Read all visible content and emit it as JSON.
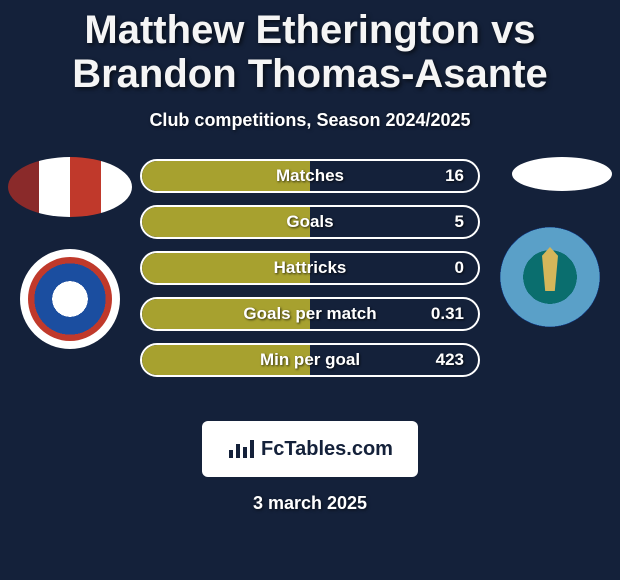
{
  "title": "Matthew Etherington vs Brandon Thomas-Asante",
  "title_fontsize": 40,
  "title_color": "#f5f5f5",
  "subtitle": "Club competitions, Season 2024/2025",
  "subtitle_fontsize": 18,
  "subtitle_color": "#ffffff",
  "background_color": "#14213a",
  "bars": {
    "track_border_color": "#ffffff",
    "fill_color": "#a7a12f",
    "fill_fraction": 0.5,
    "label_fontsize": 17,
    "value_fontsize": 17,
    "items": [
      {
        "label": "Matches",
        "value": "16"
      },
      {
        "label": "Goals",
        "value": "5"
      },
      {
        "label": "Hattricks",
        "value": "0"
      },
      {
        "label": "Goals per match",
        "value": "0.31"
      },
      {
        "label": "Min per goal",
        "value": "423"
      }
    ]
  },
  "footer": {
    "logo_text": "FcTables.com",
    "logo_fontsize": 20,
    "date": "3 march 2025",
    "date_fontsize": 18
  }
}
